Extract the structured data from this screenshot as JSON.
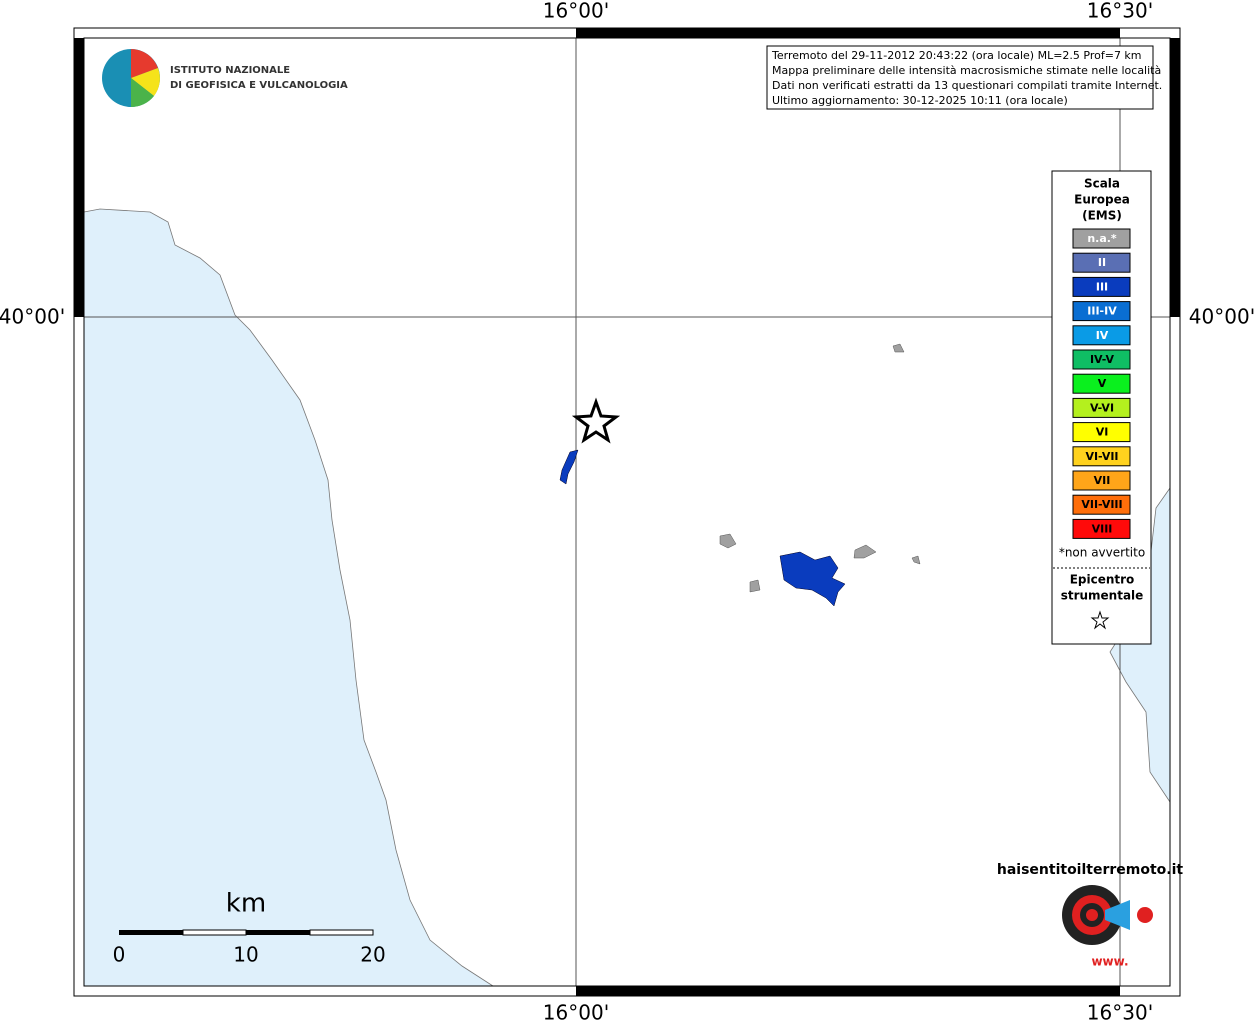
{
  "map": {
    "lon_labels": [
      "16°00'",
      "16°30'"
    ],
    "lat_label": "40°00'",
    "logo": {
      "line1": "ISTITUTO NAZIONALE",
      "line2": "DI GEOFISICA E VULCANOLOGIA"
    },
    "info": [
      "Terremoto del 29-11-2012 20:43:22 (ora locale) ML=2.5 Prof=7 km",
      "Mappa preliminare delle intensità macrosismiche stimate nelle località",
      "Dati non verificati estratti da 13 questionari compilati tramite Internet.",
      "Ultimo aggiornamento: 30-12-2025 10:11 (ora locale)"
    ],
    "legend": {
      "title": [
        "Scala",
        "Europea",
        "(EMS)"
      ],
      "items": [
        {
          "label": "n.a.*",
          "color": "#a0a0a0"
        },
        {
          "label": "II",
          "color": "#5a6fb4"
        },
        {
          "label": "III",
          "color": "#0a3cbe"
        },
        {
          "label": "III-IV",
          "color": "#0a6ed2"
        },
        {
          "label": "IV",
          "color": "#0a9be6"
        },
        {
          "label": "IV-V",
          "color": "#0fbe64"
        },
        {
          "label": "V",
          "color": "#0af01e"
        },
        {
          "label": "V-VI",
          "color": "#b4f01e"
        },
        {
          "label": "VI",
          "color": "#ffff00"
        },
        {
          "label": "VI-VII",
          "color": "#ffd21e"
        },
        {
          "label": "VII",
          "color": "#ffa519"
        },
        {
          "label": "VII-VIII",
          "color": "#ff6e0a"
        },
        {
          "label": "VIII",
          "color": "#ff0a0a"
        }
      ],
      "note": "*non avvertito",
      "epicenter": [
        "Epicentro",
        "strumentale"
      ]
    },
    "scale": {
      "unit": "km",
      "ticks": [
        0,
        10,
        20
      ]
    },
    "site": {
      "prefix": "www.",
      "name": "haisentitoilterremoto.it"
    }
  }
}
